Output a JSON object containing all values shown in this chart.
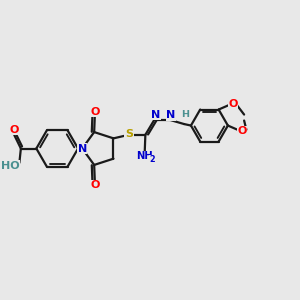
{
  "background_color": "#e8e8e8",
  "line_color": "#1a1a1a",
  "bond_lw": 1.6,
  "atom_colors": {
    "O": "#ff0000",
    "N": "#0000cc",
    "S": "#b8a000",
    "H": "#4a9090",
    "C": "#1a1a1a"
  },
  "fs": 8.0,
  "fs_small": 7.0
}
